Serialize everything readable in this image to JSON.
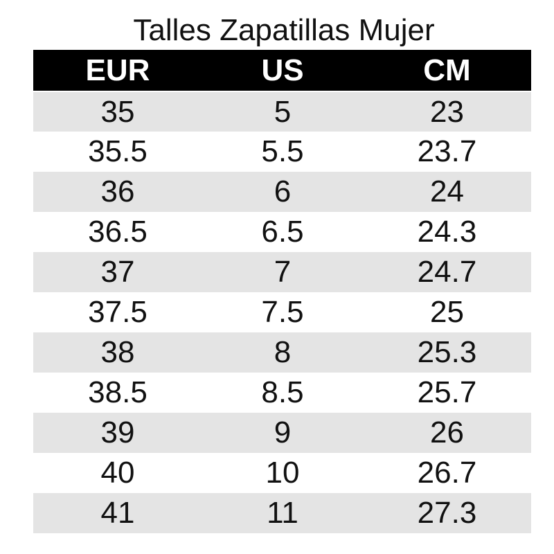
{
  "title": "Talles Zapatillas Mujer",
  "headers": [
    "EUR",
    "US",
    "CM"
  ],
  "rows": [
    [
      "35",
      "5",
      "23"
    ],
    [
      "35.5",
      "5.5",
      "23.7"
    ],
    [
      "36",
      "6",
      "24"
    ],
    [
      "36.5",
      "6.5",
      "24.3"
    ],
    [
      "37",
      "7",
      "24.7"
    ],
    [
      "37.5",
      "7.5",
      "25"
    ],
    [
      "38",
      "8",
      "25.3"
    ],
    [
      "38.5",
      "8.5",
      "25.7"
    ],
    [
      "39",
      "9",
      "26"
    ],
    [
      "40",
      "10",
      "26.7"
    ],
    [
      "41",
      "11",
      "27.3"
    ]
  ],
  "colors": {
    "header_bg": "#000000",
    "header_text": "#ffffff",
    "stripe": "#e4e4e4"
  }
}
